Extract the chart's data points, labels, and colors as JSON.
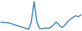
{
  "line_color": "#2B7BB9",
  "background_color": "#ffffff",
  "linewidth": 1.1,
  "y_values": [
    50,
    49,
    49,
    48,
    46,
    44,
    42,
    40,
    38,
    36,
    34,
    50,
    95,
    50,
    36,
    35,
    37,
    36,
    38,
    44,
    50,
    44,
    38,
    42,
    50,
    56,
    60,
    64,
    62,
    66
  ],
  "figsize": [
    1.2,
    0.45
  ],
  "dpi": 100
}
